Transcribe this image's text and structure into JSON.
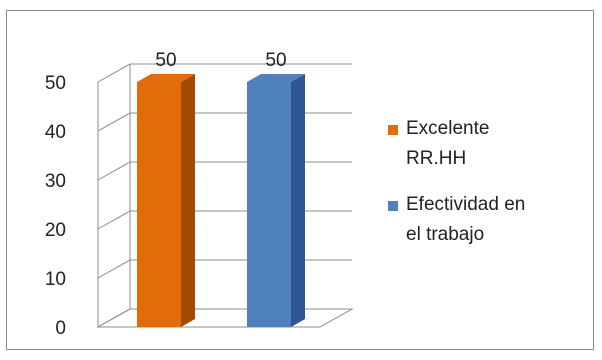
{
  "chart_data": {
    "type": "bar",
    "categories": [
      ""
    ],
    "series": [
      {
        "name": "Excelente RR.HH",
        "values": [
          50
        ],
        "color": "#E36C0A",
        "side_color": "#A34A05"
      },
      {
        "name": "Efectividad en el trabajo",
        "values": [
          50
        ],
        "color": "#4F81BD",
        "side_color": "#2F5597"
      }
    ],
    "title": "",
    "xlabel": "",
    "ylabel": "",
    "ylim": [
      0,
      50
    ],
    "yticks": [
      0,
      10,
      20,
      30,
      40,
      50
    ],
    "grid": true,
    "legend_position": "right",
    "bar_style": "3d",
    "data_labels": true
  },
  "legend": {
    "items": [
      {
        "lines": [
          "Excelente",
          "RR.HH"
        ],
        "color": "#E36C0A"
      },
      {
        "lines": [
          "Efectividad en",
          "el trabajo"
        ],
        "color": "#4F81BD"
      }
    ]
  }
}
